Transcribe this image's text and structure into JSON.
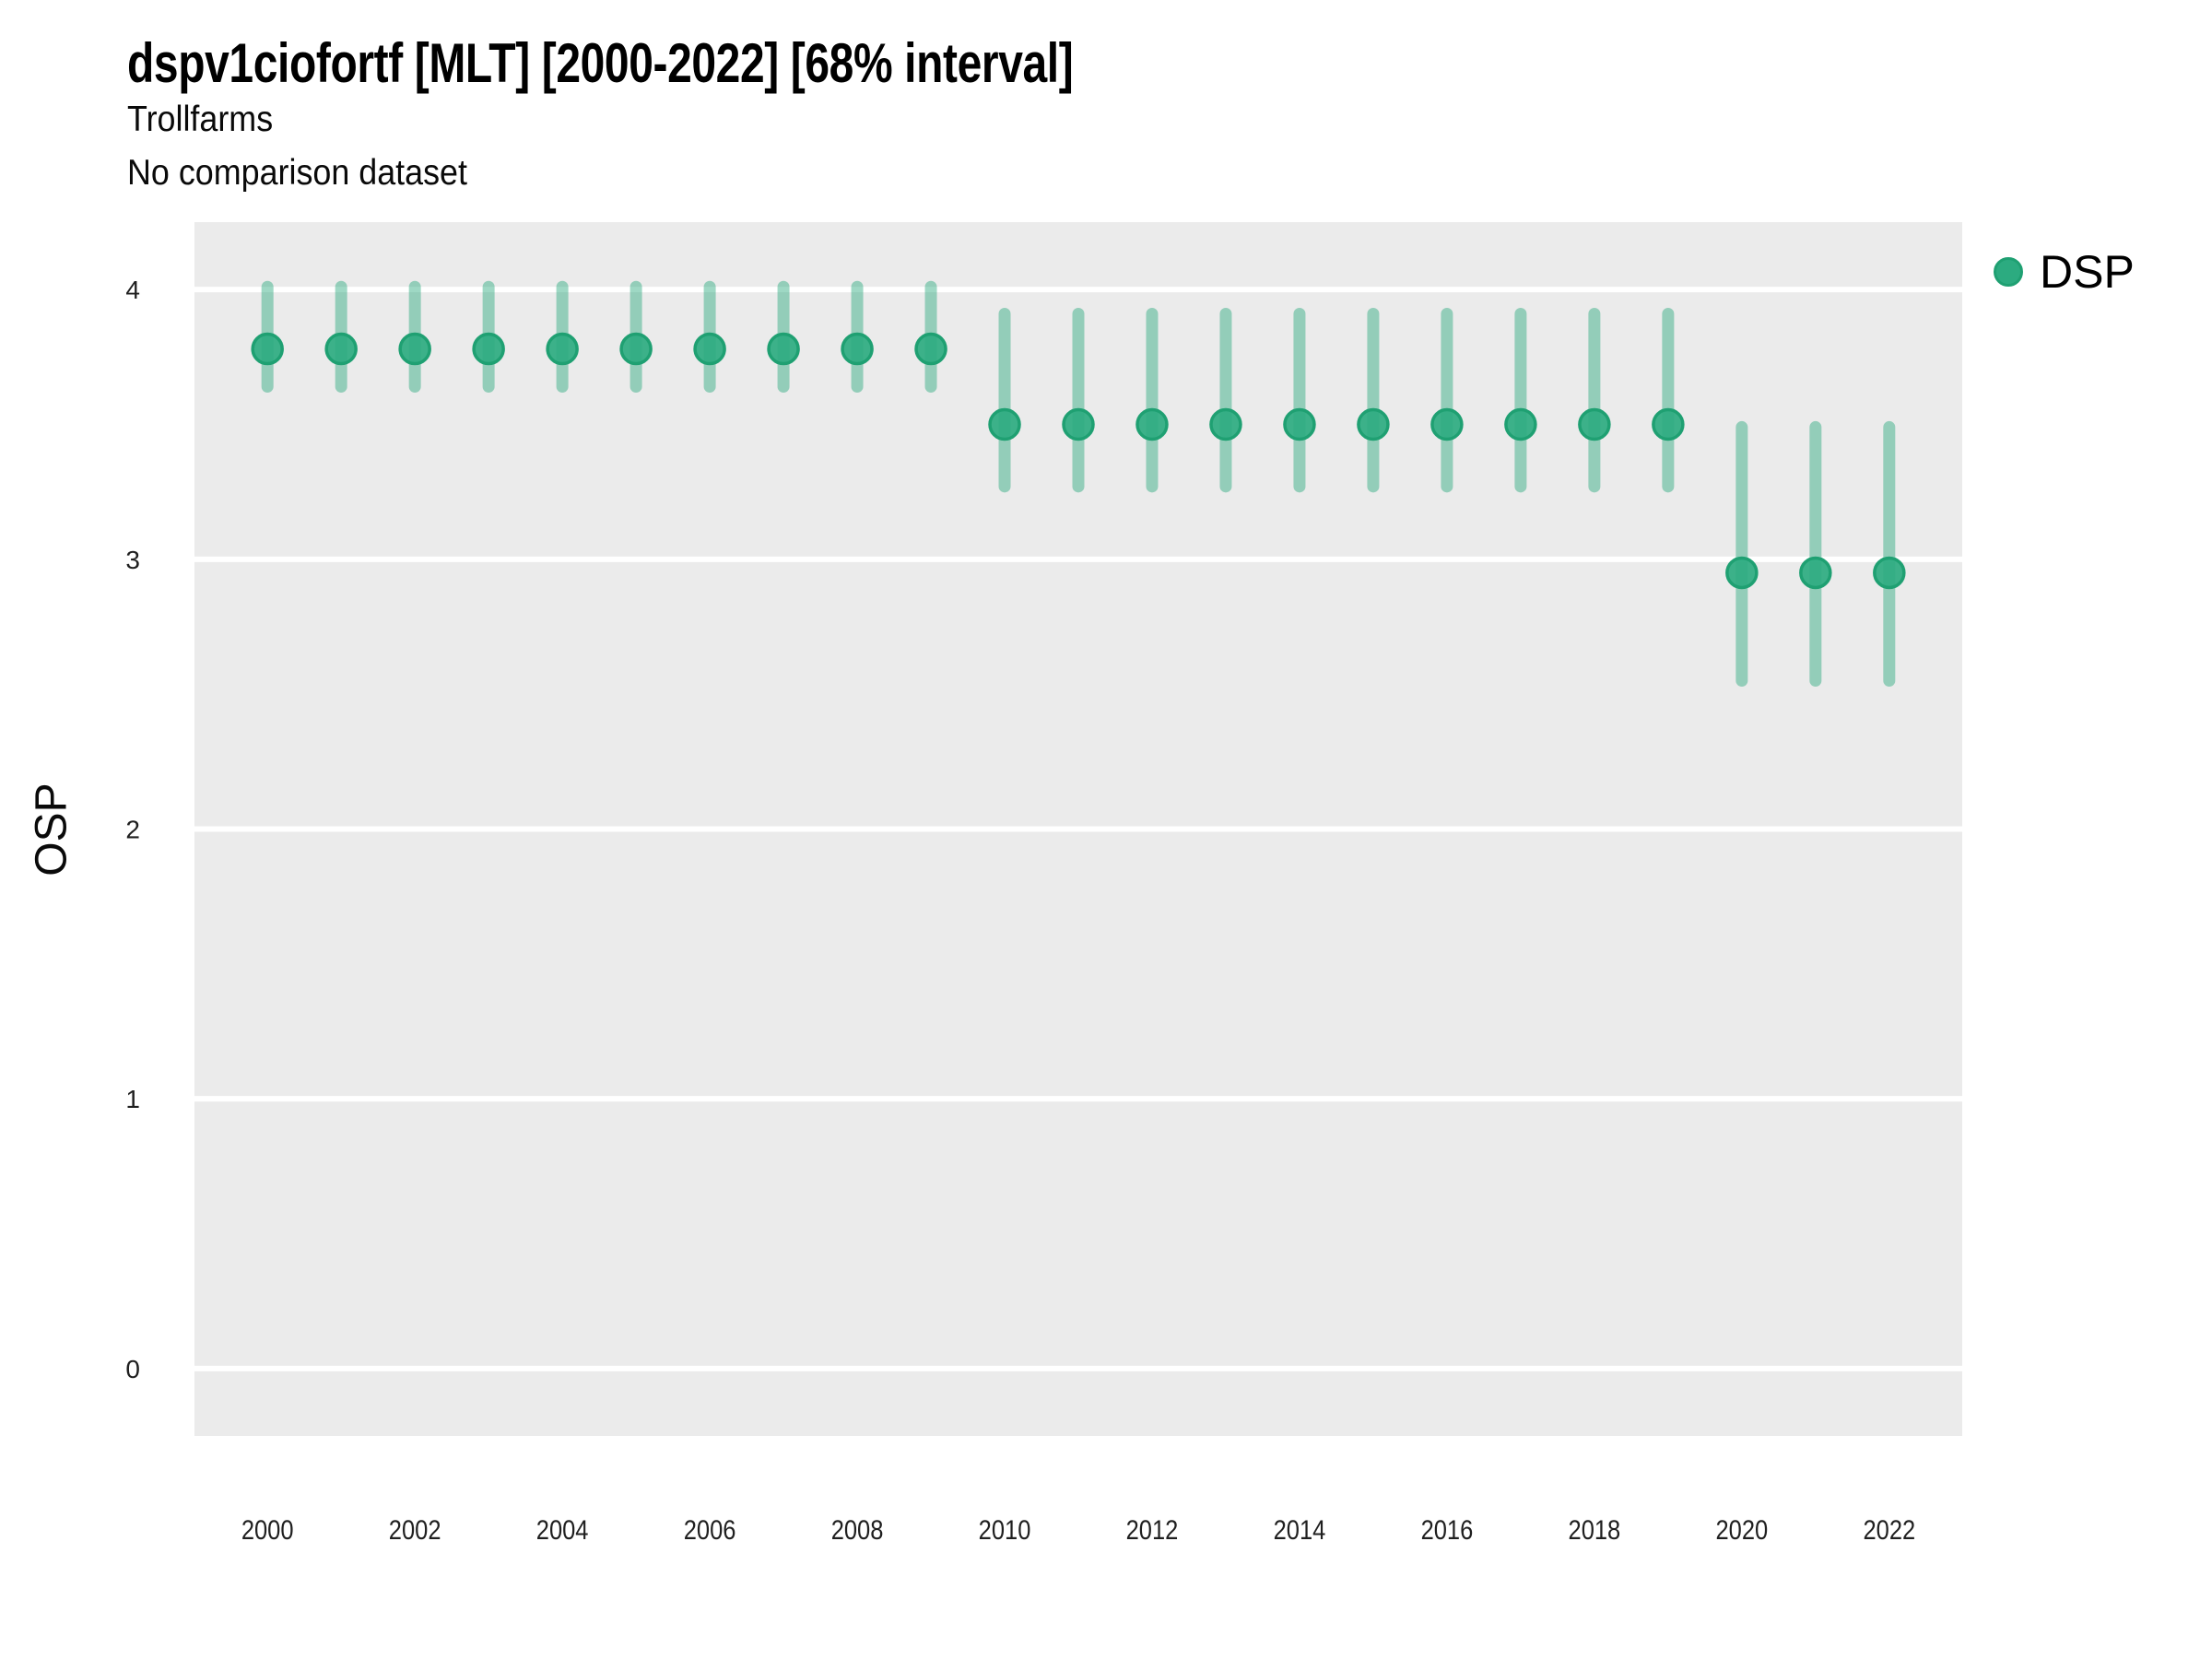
{
  "colors": {
    "point_fill": "#2cab80",
    "point_stroke": "#1fa072",
    "interval_line": "rgba(41, 168, 124, 0.45)",
    "panel_background": "#ebebeb",
    "gridline": "#ffffff",
    "tick_text": "#1f1f1f",
    "title_text": "#000000"
  },
  "chart_data": {
    "type": "scatter",
    "variant": "pointrange",
    "title": "dspv1ciofortf [MLT] [2000-2022] [68% interval]",
    "subtitle1": "Trollfarms",
    "subtitle2": "No comparison dataset",
    "xlabel": "",
    "ylabel": "OSP",
    "interval": "68%",
    "grid": "horizontal-major-only",
    "legend_position": "right",
    "ylim": [
      -0.25,
      4.25
    ],
    "xlim": [
      1999.01,
      2022.99
    ],
    "y_ticks": [
      0,
      1,
      2,
      3,
      4
    ],
    "x_ticks": [
      2000,
      2002,
      2004,
      2006,
      2008,
      2010,
      2012,
      2014,
      2016,
      2018,
      2020,
      2022
    ],
    "series": [
      {
        "name": "DSP",
        "x": [
          2000,
          2001,
          2002,
          2003,
          2004,
          2005,
          2006,
          2007,
          2008,
          2009,
          2010,
          2011,
          2012,
          2013,
          2014,
          2015,
          2016,
          2017,
          2018,
          2019,
          2020,
          2021,
          2022
        ],
        "y": [
          3.78,
          3.78,
          3.78,
          3.78,
          3.78,
          3.78,
          3.78,
          3.78,
          3.78,
          3.78,
          3.5,
          3.5,
          3.5,
          3.5,
          3.5,
          3.5,
          3.5,
          3.5,
          3.5,
          3.5,
          2.95,
          2.95,
          2.95
        ],
        "y_lo": [
          3.64,
          3.64,
          3.64,
          3.64,
          3.64,
          3.64,
          3.64,
          3.64,
          3.64,
          3.64,
          3.27,
          3.27,
          3.27,
          3.27,
          3.27,
          3.27,
          3.27,
          3.27,
          3.27,
          3.27,
          2.55,
          2.55,
          2.55
        ],
        "y_hi": [
          4.01,
          4.01,
          4.01,
          4.01,
          4.01,
          4.01,
          4.01,
          4.01,
          4.01,
          4.01,
          3.91,
          3.91,
          3.91,
          3.91,
          3.91,
          3.91,
          3.91,
          3.91,
          3.91,
          3.91,
          3.49,
          3.49,
          3.49
        ]
      }
    ]
  }
}
